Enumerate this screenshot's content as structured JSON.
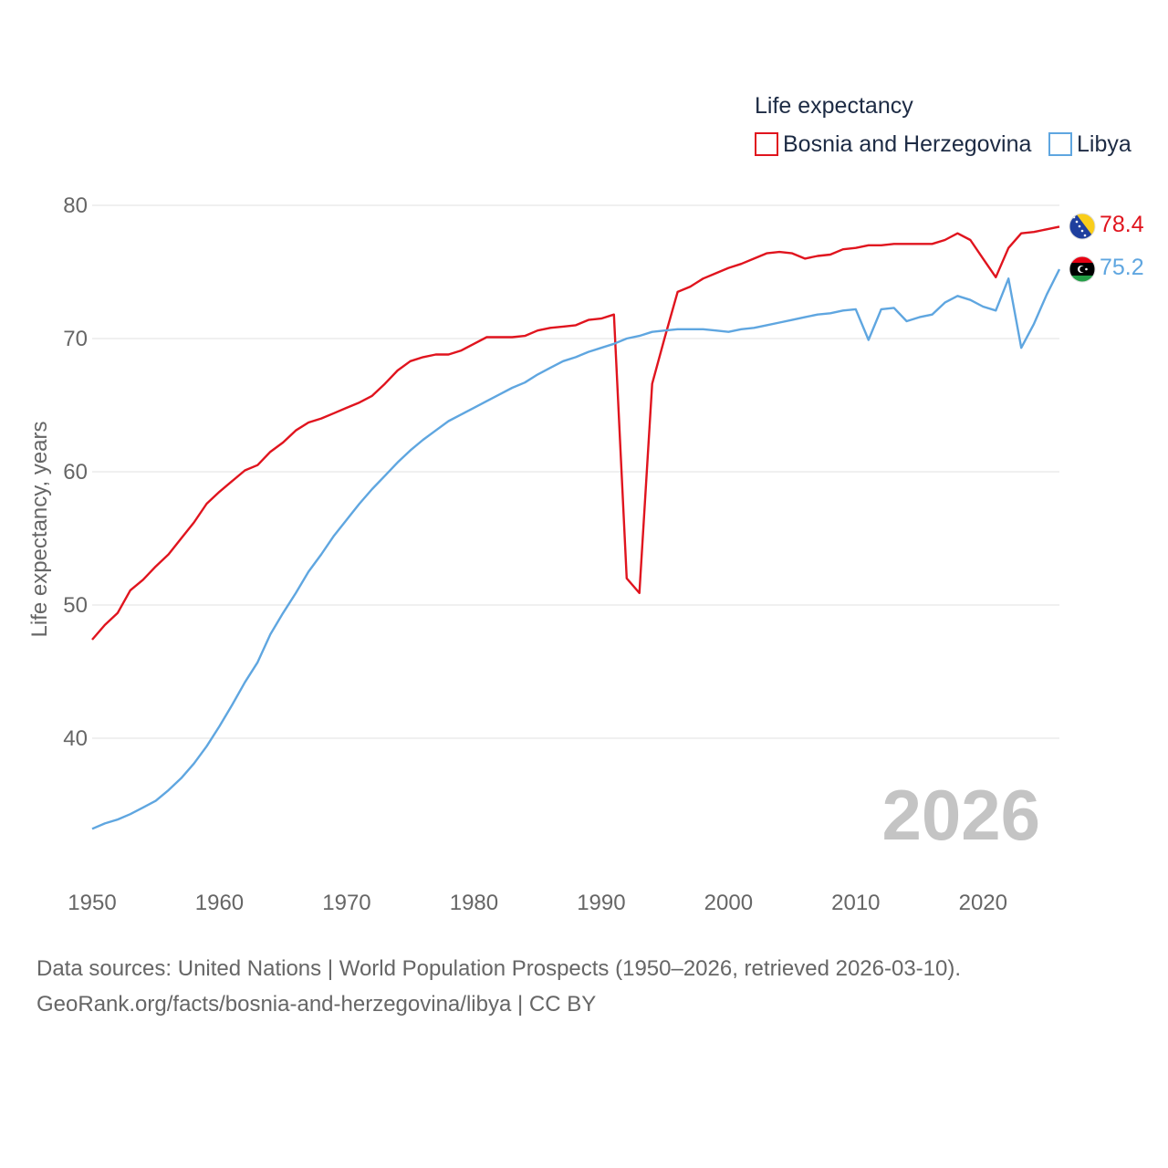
{
  "chart_data": {
    "type": "line",
    "legend_title": "Life expectancy",
    "ylabel": "Life expectancy, years",
    "xlabel": "",
    "xlim": [
      1950,
      2026
    ],
    "ylim": [
      30,
      81
    ],
    "x_ticks": [
      "1950",
      "1960",
      "1970",
      "1980",
      "1990",
      "2000",
      "2010",
      "2020"
    ],
    "y_ticks": [
      "40",
      "50",
      "60",
      "70",
      "80"
    ],
    "year_watermark": "2026",
    "x": [
      1950,
      1951,
      1952,
      1953,
      1954,
      1955,
      1956,
      1957,
      1958,
      1959,
      1960,
      1961,
      1962,
      1963,
      1964,
      1965,
      1966,
      1967,
      1968,
      1969,
      1970,
      1971,
      1972,
      1973,
      1974,
      1975,
      1976,
      1977,
      1978,
      1979,
      1980,
      1981,
      1982,
      1983,
      1984,
      1985,
      1986,
      1987,
      1988,
      1989,
      1990,
      1991,
      1992,
      1993,
      1994,
      1995,
      1996,
      1997,
      1998,
      1999,
      2000,
      2001,
      2002,
      2003,
      2004,
      2005,
      2006,
      2007,
      2008,
      2009,
      2010,
      2011,
      2012,
      2013,
      2014,
      2015,
      2016,
      2017,
      2018,
      2019,
      2020,
      2021,
      2022,
      2023,
      2024,
      2025,
      2026
    ],
    "series": [
      {
        "name": "Bosnia and Herzegovina",
        "color": "#e0141e",
        "flag": "bosnia-flag",
        "end_label": "78.4",
        "values": [
          47.4,
          48.5,
          49.4,
          51.1,
          51.9,
          52.9,
          53.8,
          55.0,
          56.2,
          57.6,
          58.5,
          59.3,
          60.1,
          60.5,
          61.5,
          62.2,
          63.1,
          63.7,
          64.0,
          64.4,
          64.8,
          65.2,
          65.7,
          66.6,
          67.6,
          68.3,
          68.6,
          68.8,
          68.8,
          69.1,
          69.6,
          70.1,
          70.1,
          70.1,
          70.2,
          70.6,
          70.8,
          70.9,
          71.0,
          71.4,
          71.5,
          71.8,
          52.0,
          50.9,
          66.6,
          70.1,
          73.5,
          73.9,
          74.5,
          74.9,
          75.3,
          75.6,
          76.0,
          76.4,
          76.5,
          76.4,
          76.0,
          76.2,
          76.3,
          76.7,
          76.8,
          77.0,
          77.0,
          77.1,
          77.1,
          77.1,
          77.1,
          77.4,
          77.9,
          77.4,
          76.0,
          74.6,
          76.8,
          77.9,
          78.0,
          78.2,
          78.4
        ]
      },
      {
        "name": "Libya",
        "color": "#5fa6e0",
        "flag": "libya-flag",
        "end_label": "75.2",
        "values": [
          33.2,
          33.6,
          33.9,
          34.3,
          34.8,
          35.3,
          36.1,
          37.0,
          38.1,
          39.4,
          40.9,
          42.5,
          44.2,
          45.7,
          47.8,
          49.4,
          50.9,
          52.5,
          53.8,
          55.2,
          56.4,
          57.6,
          58.7,
          59.7,
          60.7,
          61.6,
          62.4,
          63.1,
          63.8,
          64.3,
          64.8,
          65.3,
          65.8,
          66.3,
          66.7,
          67.3,
          67.8,
          68.3,
          68.6,
          69.0,
          69.3,
          69.6,
          70.0,
          70.2,
          70.5,
          70.6,
          70.7,
          70.7,
          70.7,
          70.6,
          70.5,
          70.7,
          70.8,
          71.0,
          71.2,
          71.4,
          71.6,
          71.8,
          71.9,
          72.1,
          72.2,
          69.9,
          72.2,
          72.3,
          71.3,
          71.6,
          71.8,
          72.7,
          73.2,
          72.9,
          72.4,
          72.1,
          74.5,
          69.3,
          71.1,
          73.3,
          75.2
        ]
      }
    ]
  },
  "source": {
    "line1": "Data sources: United Nations | World Population Prospects (1950–2026, retrieved 2026-03-10).",
    "line2": "GeoRank.org/facts/bosnia-and-herzegovina/libya | CC BY"
  }
}
